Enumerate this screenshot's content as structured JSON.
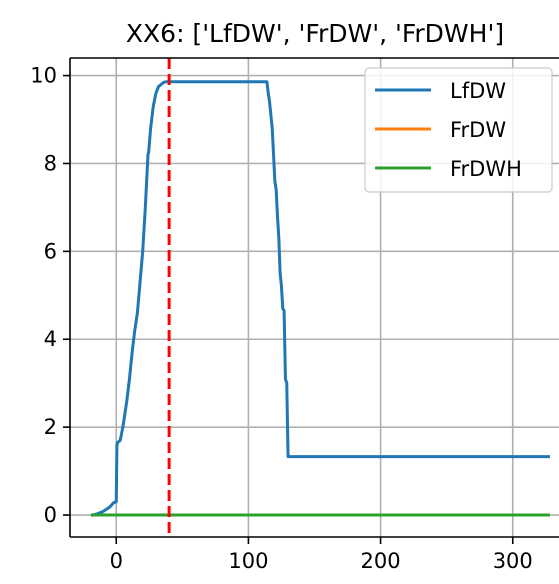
{
  "chart_data": {
    "type": "line",
    "title": "XX6: ['LfDW', 'FrDW', 'FrDWH']",
    "xlabel": "",
    "ylabel": "",
    "xlim": [
      -35,
      335
    ],
    "ylim": [
      -0.5,
      10.4
    ],
    "xticks": [
      0,
      100,
      200,
      300
    ],
    "yticks": [
      0,
      2,
      4,
      6,
      8,
      10
    ],
    "grid": true,
    "legend_position": "top-right",
    "vline": {
      "x": 40,
      "color": "#ff0000",
      "style": "dashed"
    },
    "series": [
      {
        "name": "LfDW",
        "color": "#1f77b4",
        "x": [
          -18,
          -15,
          -10,
          -5,
          -2,
          0,
          0.5,
          1,
          3,
          5,
          6,
          8,
          10,
          12,
          14,
          16,
          18,
          20,
          22,
          24,
          24.5,
          26,
          28,
          30,
          32,
          34,
          36,
          38,
          40,
          42,
          60,
          80,
          100,
          114,
          115,
          116,
          117,
          118,
          119,
          120,
          121,
          122,
          123,
          124,
          125,
          126,
          127,
          128,
          129,
          130,
          131,
          132,
          133,
          134,
          150,
          200,
          250,
          300,
          327
        ],
        "y": [
          0,
          0.02,
          0.08,
          0.18,
          0.28,
          0.3,
          1.6,
          1.65,
          1.7,
          2.0,
          2.2,
          2.6,
          3.1,
          3.7,
          4.2,
          4.6,
          5.3,
          6.0,
          7.0,
          8.2,
          8.25,
          8.8,
          9.3,
          9.6,
          9.75,
          9.8,
          9.85,
          9.86,
          9.86,
          9.86,
          9.86,
          9.86,
          9.86,
          9.86,
          9.6,
          9.4,
          9.1,
          8.8,
          8.2,
          7.6,
          7.4,
          6.8,
          6.3,
          5.5,
          5.2,
          4.7,
          4.65,
          3.1,
          3.0,
          1.33,
          1.33,
          1.33,
          1.33,
          1.33,
          1.33,
          1.33,
          1.33,
          1.33,
          1.33
        ]
      },
      {
        "name": "FrDW",
        "color": "#ff7f0e",
        "x": [
          -18,
          327
        ],
        "y": [
          0,
          0
        ]
      },
      {
        "name": "FrDWH",
        "color": "#2ca02c",
        "x": [
          -18,
          327
        ],
        "y": [
          0,
          0
        ]
      }
    ]
  }
}
